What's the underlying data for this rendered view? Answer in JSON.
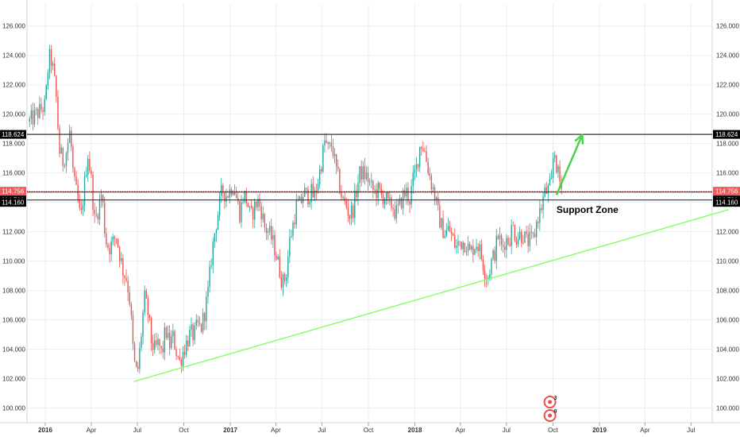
{
  "chart_data": {
    "type": "candlestick",
    "x_labels": [
      "2016",
      "Apr",
      "Jul",
      "Oct",
      "2017",
      "Apr",
      "Jul",
      "Oct",
      "2018",
      "Apr",
      "Jul",
      "Oct",
      "2019",
      "Apr",
      "Jul"
    ],
    "x_label_years": [
      true,
      false,
      false,
      false,
      true,
      false,
      false,
      false,
      true,
      false,
      false,
      false,
      true,
      false,
      false
    ],
    "y_ticks": [
      "100.000",
      "102.000",
      "104.000",
      "106.000",
      "108.000",
      "110.000",
      "112.000",
      "114.000",
      "116.000",
      "118.000",
      "120.000",
      "122.000",
      "124.000",
      "126.000"
    ],
    "ylim": [
      99,
      127.5
    ],
    "grid": true,
    "price_labels": [
      {
        "value": 118.624,
        "text": "118.624",
        "color": "#000000"
      },
      {
        "value": 114.756,
        "text": "114.756",
        "color": "#f05a5a"
      },
      {
        "value": 114.701,
        "text": "114.701",
        "color": "#000000"
      },
      {
        "value": 114.16,
        "text": "114.160",
        "color": "#000000"
      }
    ],
    "horizontal_lines": [
      118.624,
      114.701,
      114.16
    ],
    "trendline": {
      "from": {
        "x": "2016-06-24",
        "y": 101.8
      },
      "to": {
        "x": "2019-09-13",
        "y": 113.5
      },
      "color": "#7fff5a"
    },
    "arrow": {
      "from": {
        "x": "2018-10-08",
        "y": 114.5
      },
      "to": {
        "x": "2018-11-28",
        "y": 118.6
      },
      "color": "#4cd34c"
    },
    "annotations": [
      {
        "text": "Support Zone",
        "x": "2018-10-08",
        "y": 113.5
      }
    ],
    "events": [
      {
        "label": "3"
      },
      {
        "label": "9"
      }
    ],
    "colors": {
      "up": "#26a69a",
      "down": "#ef5350",
      "grid": "#e8eef3"
    },
    "ohlc_path": [
      [
        "2015-12-01",
        119.5
      ],
      [
        "2015-12-29",
        120.5
      ],
      [
        "2016-01-01",
        120.6
      ],
      [
        "2016-01-08",
        123.9
      ],
      [
        "2016-01-14",
        123.6
      ],
      [
        "2016-01-22",
        121.5
      ],
      [
        "2016-01-29",
        117.5
      ],
      [
        "2016-02-05",
        116.8
      ],
      [
        "2016-02-12",
        117.5
      ],
      [
        "2016-02-19",
        118.9
      ],
      [
        "2016-02-26",
        115.5
      ],
      [
        "2016-03-04",
        114.4
      ],
      [
        "2016-03-11",
        112.7
      ],
      [
        "2016-03-18",
        115.0
      ],
      [
        "2016-03-25",
        117.4
      ],
      [
        "2016-04-01",
        115.5
      ],
      [
        "2016-04-08",
        112.6
      ],
      [
        "2016-04-15",
        113.6
      ],
      [
        "2016-04-22",
        114.7
      ],
      [
        "2016-04-29",
        111.5
      ],
      [
        "2016-05-06",
        110.9
      ],
      [
        "2016-05-13",
        111.2
      ],
      [
        "2016-05-20",
        111.8
      ],
      [
        "2016-05-27",
        110.5
      ],
      [
        "2016-06-03",
        109.3
      ],
      [
        "2016-06-10",
        108.8
      ],
      [
        "2016-06-17",
        107.1
      ],
      [
        "2016-06-24",
        103.2
      ],
      [
        "2016-07-01",
        102.2
      ],
      [
        "2016-07-08",
        104.7
      ],
      [
        "2016-07-15",
        107.5
      ],
      [
        "2016-07-22",
        106.5
      ],
      [
        "2016-07-29",
        104.5
      ],
      [
        "2016-08-05",
        103.9
      ],
      [
        "2016-08-12",
        104.4
      ],
      [
        "2016-08-19",
        103.6
      ],
      [
        "2016-08-26",
        105.4
      ],
      [
        "2016-09-02",
        104.2
      ],
      [
        "2016-09-09",
        104.9
      ],
      [
        "2016-09-16",
        103.9
      ],
      [
        "2016-09-23",
        103.1
      ],
      [
        "2016-09-30",
        103.9
      ],
      [
        "2016-10-07",
        104.5
      ],
      [
        "2016-10-14",
        105.1
      ],
      [
        "2016-10-21",
        104.9
      ],
      [
        "2016-10-28",
        105.6
      ],
      [
        "2016-11-04",
        105.4
      ],
      [
        "2016-11-11",
        106.5
      ],
      [
        "2016-11-18",
        107.9
      ],
      [
        "2016-11-25",
        110.4
      ],
      [
        "2016-12-02",
        112.2
      ],
      [
        "2016-12-09",
        113.5
      ],
      [
        "2016-12-16",
        114.9
      ],
      [
        "2016-12-23",
        114.5
      ],
      [
        "2016-12-30",
        114.7
      ],
      [
        "2017-01-06",
        115.3
      ],
      [
        "2017-01-13",
        114.3
      ],
      [
        "2017-01-20",
        113.2
      ],
      [
        "2017-01-27",
        114.6
      ],
      [
        "2017-02-03",
        114.1
      ],
      [
        "2017-02-10",
        112.9
      ],
      [
        "2017-02-17",
        113.6
      ],
      [
        "2017-02-24",
        114.1
      ],
      [
        "2017-03-03",
        113.5
      ],
      [
        "2017-03-10",
        112.3
      ],
      [
        "2017-03-17",
        112.0
      ],
      [
        "2017-03-24",
        111.5
      ],
      [
        "2017-03-31",
        110.7
      ],
      [
        "2017-04-07",
        109.6
      ],
      [
        "2017-04-14",
        108.5
      ],
      [
        "2017-04-21",
        109.0
      ],
      [
        "2017-04-28",
        111.3
      ],
      [
        "2017-05-05",
        112.5
      ],
      [
        "2017-05-12",
        113.8
      ],
      [
        "2017-05-19",
        113.8
      ],
      [
        "2017-05-26",
        114.7
      ],
      [
        "2017-06-02",
        114.4
      ],
      [
        "2017-06-09",
        114.7
      ],
      [
        "2017-06-16",
        114.3
      ],
      [
        "2017-06-23",
        115.4
      ],
      [
        "2017-06-30",
        116.7
      ],
      [
        "2017-07-07",
        118.2
      ],
      [
        "2017-07-14",
        117.5
      ],
      [
        "2017-07-21",
        118.0
      ],
      [
        "2017-07-28",
        116.4
      ],
      [
        "2017-08-04",
        115.3
      ],
      [
        "2017-08-11",
        114.1
      ],
      [
        "2017-08-18",
        113.8
      ],
      [
        "2017-08-25",
        113.1
      ],
      [
        "2017-09-01",
        113.6
      ],
      [
        "2017-09-08",
        114.9
      ],
      [
        "2017-09-15",
        116.1
      ],
      [
        "2017-09-22",
        115.9
      ],
      [
        "2017-09-29",
        115.7
      ],
      [
        "2017-10-06",
        115.0
      ],
      [
        "2017-10-13",
        114.7
      ],
      [
        "2017-10-20",
        114.8
      ],
      [
        "2017-10-27",
        114.4
      ],
      [
        "2017-11-03",
        114.4
      ],
      [
        "2017-11-10",
        113.7
      ],
      [
        "2017-11-17",
        113.9
      ],
      [
        "2017-11-24",
        113.2
      ],
      [
        "2017-12-01",
        113.7
      ],
      [
        "2017-12-08",
        114.4
      ],
      [
        "2017-12-15",
        114.7
      ],
      [
        "2017-12-22",
        114.2
      ],
      [
        "2017-12-29",
        115.6
      ],
      [
        "2018-01-05",
        116.5
      ],
      [
        "2018-01-12",
        118.1
      ],
      [
        "2018-01-19",
        117.7
      ],
      [
        "2018-01-26",
        116.5
      ],
      [
        "2018-02-02",
        115.4
      ],
      [
        "2018-02-09",
        114.5
      ],
      [
        "2018-02-16",
        113.2
      ],
      [
        "2018-02-23",
        112.3
      ],
      [
        "2018-03-02",
        111.9
      ],
      [
        "2018-03-09",
        112.2
      ],
      [
        "2018-03-16",
        111.6
      ],
      [
        "2018-03-23",
        110.9
      ],
      [
        "2018-03-30",
        111.3
      ],
      [
        "2018-04-06",
        111.3
      ],
      [
        "2018-04-13",
        111.2
      ],
      [
        "2018-04-20",
        110.5
      ],
      [
        "2018-04-27",
        111.0
      ],
      [
        "2018-05-04",
        111.3
      ],
      [
        "2018-05-11",
        110.5
      ],
      [
        "2018-05-18",
        109.5
      ],
      [
        "2018-05-25",
        108.9
      ],
      [
        "2018-06-01",
        109.9
      ],
      [
        "2018-06-08",
        110.6
      ],
      [
        "2018-06-15",
        111.8
      ],
      [
        "2018-06-22",
        110.8
      ],
      [
        "2018-06-29",
        111.5
      ],
      [
        "2018-07-06",
        111.4
      ],
      [
        "2018-07-13",
        112.4
      ],
      [
        "2018-07-20",
        111.6
      ],
      [
        "2018-07-27",
        111.8
      ],
      [
        "2018-08-03",
        111.8
      ],
      [
        "2018-08-10",
        111.3
      ],
      [
        "2018-08-17",
        111.4
      ],
      [
        "2018-08-24",
        111.5
      ],
      [
        "2018-08-31",
        112.9
      ],
      [
        "2018-09-07",
        113.5
      ],
      [
        "2018-09-14",
        114.6
      ],
      [
        "2018-09-21",
        114.8
      ],
      [
        "2018-09-28",
        115.2
      ],
      [
        "2018-10-03",
        117.8
      ],
      [
        "2018-10-09",
        116.3
      ],
      [
        "2018-10-12",
        115.7
      ],
      [
        "2018-10-19",
        114.8
      ]
    ]
  }
}
